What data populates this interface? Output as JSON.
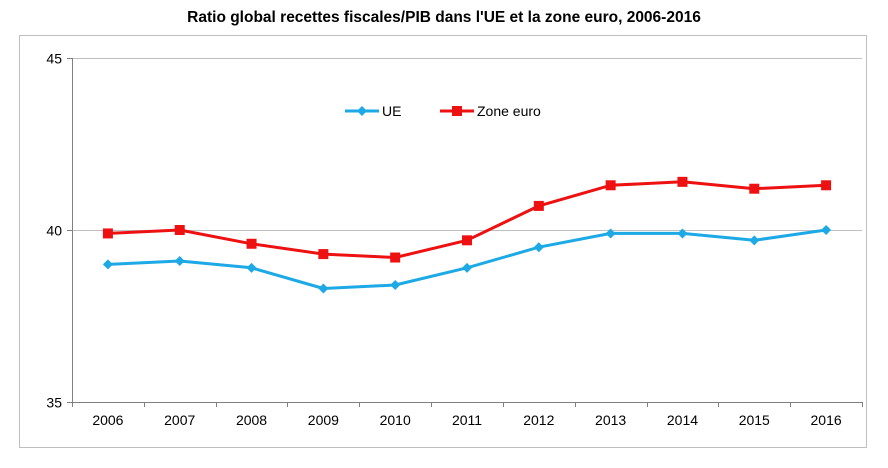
{
  "chart_data": {
    "type": "line",
    "title": "Ratio global recettes fiscales/PIB dans l'UE et la zone euro, 2006-2016",
    "xlabel": "",
    "ylabel": "",
    "categories": [
      "2006",
      "2007",
      "2008",
      "2009",
      "2010",
      "2011",
      "2012",
      "2013",
      "2014",
      "2015",
      "2016"
    ],
    "ylim": [
      35,
      45
    ],
    "yticks": [
      35,
      40,
      45
    ],
    "grid": "horizontal major at 40 and 45",
    "legend_position": "top-center inside plot",
    "series": [
      {
        "name": "UE",
        "color": "#1da9e6",
        "marker": "diamond",
        "values": [
          39.0,
          39.1,
          38.9,
          38.3,
          38.4,
          38.9,
          39.5,
          39.9,
          39.9,
          39.7,
          40.0
        ]
      },
      {
        "name": "Zone euro",
        "color": "#ee1111",
        "marker": "square",
        "values": [
          39.9,
          40.0,
          39.6,
          39.3,
          39.2,
          39.7,
          40.7,
          41.3,
          41.4,
          41.2,
          41.3
        ]
      }
    ]
  }
}
